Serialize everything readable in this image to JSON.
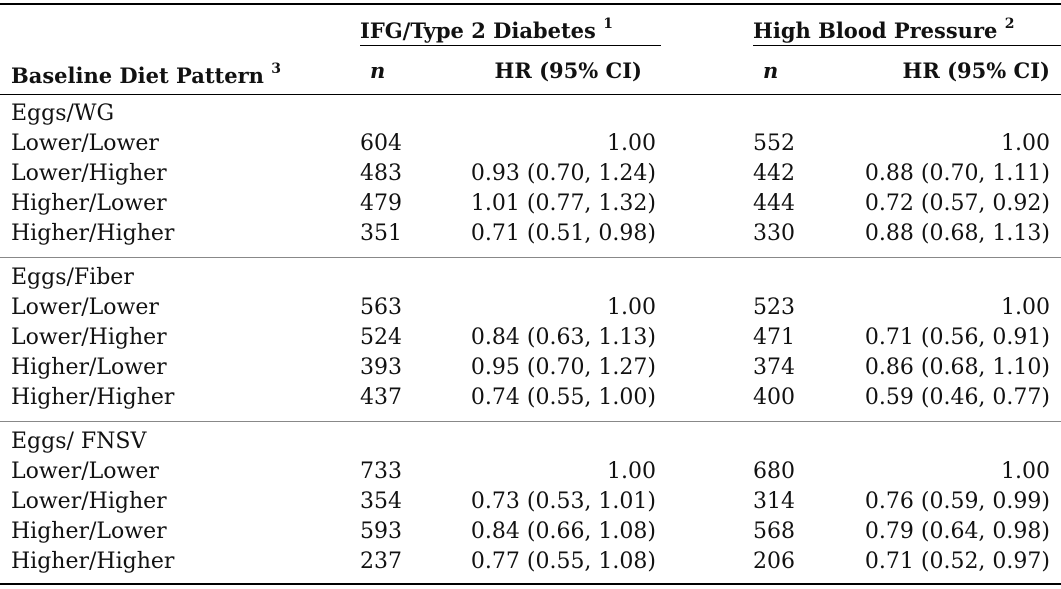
{
  "header": {
    "group1": "IFG/Type 2 Diabetes",
    "group1_sup": "1",
    "group2": "High Blood Pressure",
    "group2_sup": "2",
    "row_label": "Baseline Diet Pattern",
    "row_label_sup": "3",
    "n1": "n",
    "hr1": "HR (95% CI)",
    "n2": "n",
    "hr2": "HR (95% CI)"
  },
  "sections": [
    {
      "title": "Eggs/WG",
      "rows": [
        {
          "label": "Lower/Lower",
          "n1": "604",
          "hr1": "1.00",
          "n2": "552",
          "hr2": "1.00"
        },
        {
          "label": "Lower/Higher",
          "n1": "483",
          "hr1": "0.93 (0.70, 1.24)",
          "n2": "442",
          "hr2": "0.88 (0.70, 1.11)"
        },
        {
          "label": "Higher/Lower",
          "n1": "479",
          "hr1": "1.01 (0.77, 1.32)",
          "n2": "444",
          "hr2": "0.72 (0.57, 0.92)"
        },
        {
          "label": "Higher/Higher",
          "n1": "351",
          "hr1": "0.71 (0.51, 0.98)",
          "n2": "330",
          "hr2": "0.88 (0.68, 1.13)"
        }
      ]
    },
    {
      "title": "Eggs/Fiber",
      "rows": [
        {
          "label": "Lower/Lower",
          "n1": "563",
          "hr1": "1.00",
          "n2": "523",
          "hr2": "1.00"
        },
        {
          "label": "Lower/Higher",
          "n1": "524",
          "hr1": "0.84 (0.63, 1.13)",
          "n2": "471",
          "hr2": "0.71 (0.56, 0.91)"
        },
        {
          "label": "Higher/Lower",
          "n1": "393",
          "hr1": "0.95 (0.70, 1.27)",
          "n2": "374",
          "hr2": "0.86 (0.68, 1.10)"
        },
        {
          "label": "Higher/Higher",
          "n1": "437",
          "hr1": "0.74 (0.55, 1.00)",
          "n2": "400",
          "hr2": "0.59 (0.46, 0.77)"
        }
      ]
    },
    {
      "title": "Eggs/ FNSV",
      "rows": [
        {
          "label": "Lower/Lower",
          "n1": "733",
          "hr1": "1.00",
          "n2": "680",
          "hr2": "1.00"
        },
        {
          "label": "Lower/Higher",
          "n1": "354",
          "hr1": "0.73 (0.53, 1.01)",
          "n2": "314",
          "hr2": "0.76 (0.59, 0.99)"
        },
        {
          "label": "Higher/Lower",
          "n1": "593",
          "hr1": "0.84 (0.66, 1.08)",
          "n2": "568",
          "hr2": "0.79 (0.64, 0.98)"
        },
        {
          "label": "Higher/Higher",
          "n1": "237",
          "hr1": "0.77 (0.55, 1.08)",
          "n2": "206",
          "hr2": "0.71 (0.52, 0.97)"
        }
      ]
    }
  ]
}
